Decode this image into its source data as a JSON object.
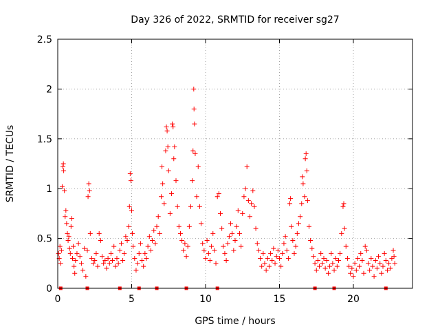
{
  "chart_data": {
    "type": "scatter",
    "title": "Day 326 of 2022, SRMTID for receiver sg27",
    "xlabel": "GPS time / hours",
    "ylabel": "SRMTID / TECUs",
    "xlim": [
      0,
      24
    ],
    "ylim": [
      0,
      2.5
    ],
    "x_ticks": [
      0,
      5,
      10,
      15,
      20
    ],
    "x_tick_labels": [
      "0",
      "5",
      "10",
      "15",
      "20"
    ],
    "y_ticks": [
      0,
      0.5,
      1,
      1.5,
      2,
      2.5
    ],
    "y_tick_labels": [
      "0",
      "0.5",
      "1",
      "1.5",
      "2",
      "2.5"
    ],
    "grid": true,
    "marker": "+",
    "series_color": "#ff0000",
    "series": [
      {
        "name": "SRMTID",
        "points": [
          [
            0.05,
            0.35
          ],
          [
            0.1,
            0.3
          ],
          [
            0.15,
            0.42
          ],
          [
            0.2,
            0.25
          ],
          [
            0.25,
            0.38
          ],
          [
            0.3,
            1.02
          ],
          [
            0.35,
            1.22
          ],
          [
            0.38,
            1.25
          ],
          [
            0.4,
            1.18
          ],
          [
            0.45,
            0.98
          ],
          [
            0.5,
            0.72
          ],
          [
            0.55,
            0.78
          ],
          [
            0.6,
            0.65
          ],
          [
            0.65,
            0.55
          ],
          [
            0.7,
            0.48
          ],
          [
            0.75,
            0.52
          ],
          [
            0.8,
            0.4
          ],
          [
            0.85,
            0.35
          ],
          [
            0.9,
            0.62
          ],
          [
            0.95,
            0.7
          ],
          [
            1.0,
            0.3
          ],
          [
            1.05,
            0.42
          ],
          [
            1.1,
            0.22
          ],
          [
            1.15,
            0.15
          ],
          [
            1.2,
            0.28
          ],
          [
            1.3,
            0.35
          ],
          [
            1.4,
            0.45
          ],
          [
            1.5,
            0.32
          ],
          [
            1.6,
            0.25
          ],
          [
            1.7,
            0.18
          ],
          [
            1.8,
            0.4
          ],
          [
            1.9,
            0.12
          ],
          [
            2.0,
            0.38
          ],
          [
            2.05,
            0.92
          ],
          [
            2.1,
            1.05
          ],
          [
            2.15,
            0.98
          ],
          [
            2.2,
            0.55
          ],
          [
            2.3,
            0.3
          ],
          [
            2.4,
            0.25
          ],
          [
            2.5,
            0.28
          ],
          [
            2.6,
            0.35
          ],
          [
            2.7,
            0.22
          ],
          [
            2.8,
            0.55
          ],
          [
            2.9,
            0.48
          ],
          [
            3.0,
            0.32
          ],
          [
            3.1,
            0.25
          ],
          [
            3.2,
            0.28
          ],
          [
            3.3,
            0.2
          ],
          [
            3.4,
            0.3
          ],
          [
            3.5,
            0.25
          ],
          [
            3.6,
            0.35
          ],
          [
            3.7,
            0.28
          ],
          [
            3.8,
            0.42
          ],
          [
            3.9,
            0.22
          ],
          [
            4.0,
            0.3
          ],
          [
            4.1,
            0.25
          ],
          [
            4.2,
            0.38
          ],
          [
            4.3,
            0.45
          ],
          [
            4.4,
            0.28
          ],
          [
            4.5,
            0.35
          ],
          [
            4.6,
            0.52
          ],
          [
            4.7,
            0.48
          ],
          [
            4.8,
            0.62
          ],
          [
            4.85,
            0.82
          ],
          [
            4.9,
            1.15
          ],
          [
            4.95,
            1.08
          ],
          [
            5.0,
            0.78
          ],
          [
            5.05,
            0.55
          ],
          [
            5.1,
            0.42
          ],
          [
            5.2,
            0.3
          ],
          [
            5.3,
            0.18
          ],
          [
            5.4,
            0.25
          ],
          [
            5.5,
            0.35
          ],
          [
            5.6,
            0.45
          ],
          [
            5.7,
            0.28
          ],
          [
            5.8,
            0.22
          ],
          [
            5.9,
            0.35
          ],
          [
            6.0,
            0.3
          ],
          [
            6.1,
            0.42
          ],
          [
            6.2,
            0.52
          ],
          [
            6.3,
            0.38
          ],
          [
            6.4,
            0.48
          ],
          [
            6.5,
            0.58
          ],
          [
            6.6,
            0.45
          ],
          [
            6.7,
            0.62
          ],
          [
            6.8,
            0.72
          ],
          [
            6.9,
            0.55
          ],
          [
            7.0,
            0.92
          ],
          [
            7.05,
            1.22
          ],
          [
            7.1,
            1.05
          ],
          [
            7.2,
            0.85
          ],
          [
            7.3,
            1.38
          ],
          [
            7.35,
            1.62
          ],
          [
            7.4,
            1.58
          ],
          [
            7.45,
            1.42
          ],
          [
            7.5,
            1.18
          ],
          [
            7.6,
            0.75
          ],
          [
            7.7,
            0.95
          ],
          [
            7.75,
            1.65
          ],
          [
            7.8,
            1.62
          ],
          [
            7.85,
            1.3
          ],
          [
            7.9,
            1.42
          ],
          [
            8.0,
            1.08
          ],
          [
            8.1,
            0.82
          ],
          [
            8.2,
            0.62
          ],
          [
            8.3,
            0.55
          ],
          [
            8.4,
            0.48
          ],
          [
            8.5,
            0.38
          ],
          [
            8.6,
            0.45
          ],
          [
            8.7,
            0.32
          ],
          [
            8.8,
            0.42
          ],
          [
            8.9,
            0.62
          ],
          [
            9.0,
            0.82
          ],
          [
            9.1,
            1.08
          ],
          [
            9.15,
            1.38
          ],
          [
            9.2,
            2.0
          ],
          [
            9.22,
            1.8
          ],
          [
            9.25,
            1.65
          ],
          [
            9.3,
            1.35
          ],
          [
            9.4,
            0.92
          ],
          [
            9.5,
            1.22
          ],
          [
            9.6,
            0.82
          ],
          [
            9.7,
            0.65
          ],
          [
            9.8,
            0.45
          ],
          [
            9.9,
            0.38
          ],
          [
            10.0,
            0.3
          ],
          [
            10.1,
            0.48
          ],
          [
            10.2,
            0.35
          ],
          [
            10.3,
            0.28
          ],
          [
            10.4,
            0.42
          ],
          [
            10.5,
            0.55
          ],
          [
            10.6,
            0.38
          ],
          [
            10.7,
            0.25
          ],
          [
            10.8,
            0.92
          ],
          [
            10.9,
            0.95
          ],
          [
            11.0,
            0.75
          ],
          [
            11.1,
            0.6
          ],
          [
            11.2,
            0.42
          ],
          [
            11.3,
            0.35
          ],
          [
            11.4,
            0.28
          ],
          [
            11.5,
            0.45
          ],
          [
            11.6,
            0.52
          ],
          [
            11.7,
            0.65
          ],
          [
            11.8,
            0.55
          ],
          [
            11.9,
            0.38
          ],
          [
            12.0,
            0.48
          ],
          [
            12.1,
            0.62
          ],
          [
            12.2,
            0.78
          ],
          [
            12.3,
            0.55
          ],
          [
            12.4,
            0.42
          ],
          [
            12.5,
            0.75
          ],
          [
            12.6,
            0.92
          ],
          [
            12.7,
            1.0
          ],
          [
            12.8,
            1.22
          ],
          [
            12.9,
            0.88
          ],
          [
            13.0,
            0.72
          ],
          [
            13.1,
            0.85
          ],
          [
            13.2,
            0.98
          ],
          [
            13.3,
            0.82
          ],
          [
            13.4,
            0.6
          ],
          [
            13.5,
            0.45
          ],
          [
            13.6,
            0.38
          ],
          [
            13.7,
            0.3
          ],
          [
            13.8,
            0.22
          ],
          [
            13.9,
            0.35
          ],
          [
            14.0,
            0.25
          ],
          [
            14.1,
            0.18
          ],
          [
            14.2,
            0.3
          ],
          [
            14.3,
            0.22
          ],
          [
            14.4,
            0.35
          ],
          [
            14.5,
            0.28
          ],
          [
            14.6,
            0.4
          ],
          [
            14.7,
            0.25
          ],
          [
            14.8,
            0.32
          ],
          [
            14.9,
            0.38
          ],
          [
            15.0,
            0.3
          ],
          [
            15.1,
            0.22
          ],
          [
            15.2,
            0.35
          ],
          [
            15.3,
            0.45
          ],
          [
            15.4,
            0.52
          ],
          [
            15.5,
            0.38
          ],
          [
            15.6,
            0.3
          ],
          [
            15.7,
            0.85
          ],
          [
            15.75,
            0.9
          ],
          [
            15.8,
            0.62
          ],
          [
            15.9,
            0.48
          ],
          [
            16.0,
            0.35
          ],
          [
            16.1,
            0.42
          ],
          [
            16.2,
            0.55
          ],
          [
            16.3,
            0.65
          ],
          [
            16.4,
            0.72
          ],
          [
            16.5,
            0.85
          ],
          [
            16.55,
            1.12
          ],
          [
            16.6,
            1.05
          ],
          [
            16.7,
            0.92
          ],
          [
            16.75,
            1.3
          ],
          [
            16.8,
            1.35
          ],
          [
            16.85,
            1.18
          ],
          [
            16.9,
            0.88
          ],
          [
            17.0,
            0.62
          ],
          [
            17.1,
            0.48
          ],
          [
            17.2,
            0.4
          ],
          [
            17.3,
            0.32
          ],
          [
            17.4,
            0.25
          ],
          [
            17.5,
            0.18
          ],
          [
            17.6,
            0.28
          ],
          [
            17.7,
            0.22
          ],
          [
            17.8,
            0.35
          ],
          [
            17.9,
            0.25
          ],
          [
            18.0,
            0.3
          ],
          [
            18.1,
            0.2
          ],
          [
            18.2,
            0.28
          ],
          [
            18.3,
            0.15
          ],
          [
            18.4,
            0.22
          ],
          [
            18.5,
            0.35
          ],
          [
            18.6,
            0.25
          ],
          [
            18.7,
            0.18
          ],
          [
            18.8,
            0.3
          ],
          [
            18.9,
            0.22
          ],
          [
            19.0,
            0.28
          ],
          [
            19.1,
            0.35
          ],
          [
            19.2,
            0.55
          ],
          [
            19.3,
            0.82
          ],
          [
            19.35,
            0.85
          ],
          [
            19.4,
            0.6
          ],
          [
            19.5,
            0.42
          ],
          [
            19.6,
            0.3
          ],
          [
            19.7,
            0.22
          ],
          [
            19.8,
            0.15
          ],
          [
            19.9,
            0.2
          ],
          [
            20.0,
            0.12
          ],
          [
            20.1,
            0.25
          ],
          [
            20.2,
            0.18
          ],
          [
            20.3,
            0.3
          ],
          [
            20.4,
            0.22
          ],
          [
            20.5,
            0.35
          ],
          [
            20.6,
            0.28
          ],
          [
            20.7,
            0.15
          ],
          [
            20.8,
            0.42
          ],
          [
            20.9,
            0.38
          ],
          [
            21.0,
            0.25
          ],
          [
            21.1,
            0.18
          ],
          [
            21.2,
            0.3
          ],
          [
            21.3,
            0.22
          ],
          [
            21.4,
            0.12
          ],
          [
            21.5,
            0.28
          ],
          [
            21.6,
            0.2
          ],
          [
            21.7,
            0.32
          ],
          [
            21.8,
            0.25
          ],
          [
            21.9,
            0.15
          ],
          [
            22.0,
            0.22
          ],
          [
            22.1,
            0.35
          ],
          [
            22.2,
            0.28
          ],
          [
            22.3,
            0.18
          ],
          [
            22.4,
            0.25
          ],
          [
            22.5,
            0.2
          ],
          [
            22.6,
            0.3
          ],
          [
            22.7,
            0.38
          ],
          [
            22.75,
            0.32
          ],
          [
            22.8,
            0.25
          ]
        ]
      }
    ],
    "baseline_markers_x": [
      0.2,
      2.0,
      4.2,
      5.5,
      6.7,
      8.7,
      10.8,
      17.4,
      18.7,
      22.2
    ]
  }
}
